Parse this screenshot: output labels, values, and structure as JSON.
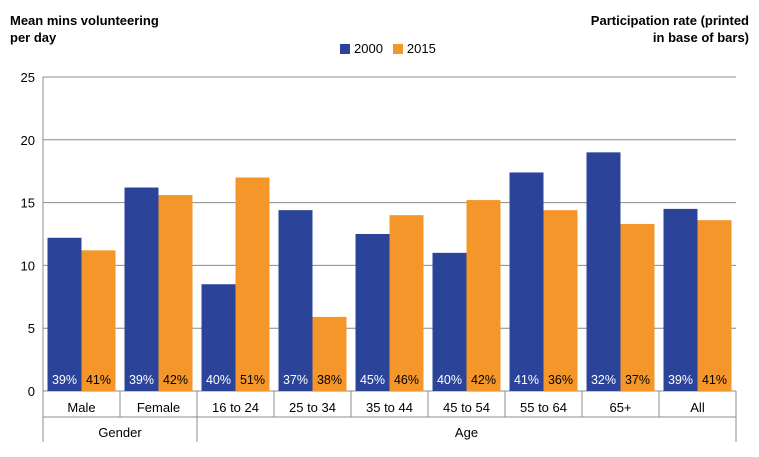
{
  "chart_data": {
    "type": "bar",
    "title": "",
    "ylabel": "Mean mins volunteering per day",
    "secondary_note": "Participation rate (printed in base of bars)",
    "ylim": [
      0,
      25
    ],
    "yticks": [
      0,
      5,
      10,
      15,
      20,
      25
    ],
    "grid": true,
    "legend_position": "top-center",
    "categories": [
      "Male",
      "Female",
      "16 to 24",
      "25 to 34",
      "35 to 44",
      "45 to 54",
      "55 to 64",
      "65+",
      "All"
    ],
    "groups": [
      {
        "label": "Gender",
        "span": [
          0,
          1
        ]
      },
      {
        "label": "Age",
        "span": [
          2,
          8
        ]
      }
    ],
    "series": [
      {
        "name": "2000",
        "color": "#2B4499",
        "values": [
          12.2,
          16.2,
          8.5,
          14.4,
          12.5,
          11.0,
          17.4,
          19.0,
          14.5
        ],
        "participation": [
          "39%",
          "39%",
          "40%",
          "37%",
          "45%",
          "40%",
          "41%",
          "32%",
          "39%"
        ]
      },
      {
        "name": "2015",
        "color": "#F4962A",
        "values": [
          11.2,
          15.6,
          17.0,
          5.9,
          14.0,
          15.2,
          14.4,
          13.3,
          13.6
        ],
        "participation": [
          "41%",
          "42%",
          "51%",
          "38%",
          "46%",
          "42%",
          "36%",
          "37%",
          "41%"
        ]
      }
    ]
  }
}
